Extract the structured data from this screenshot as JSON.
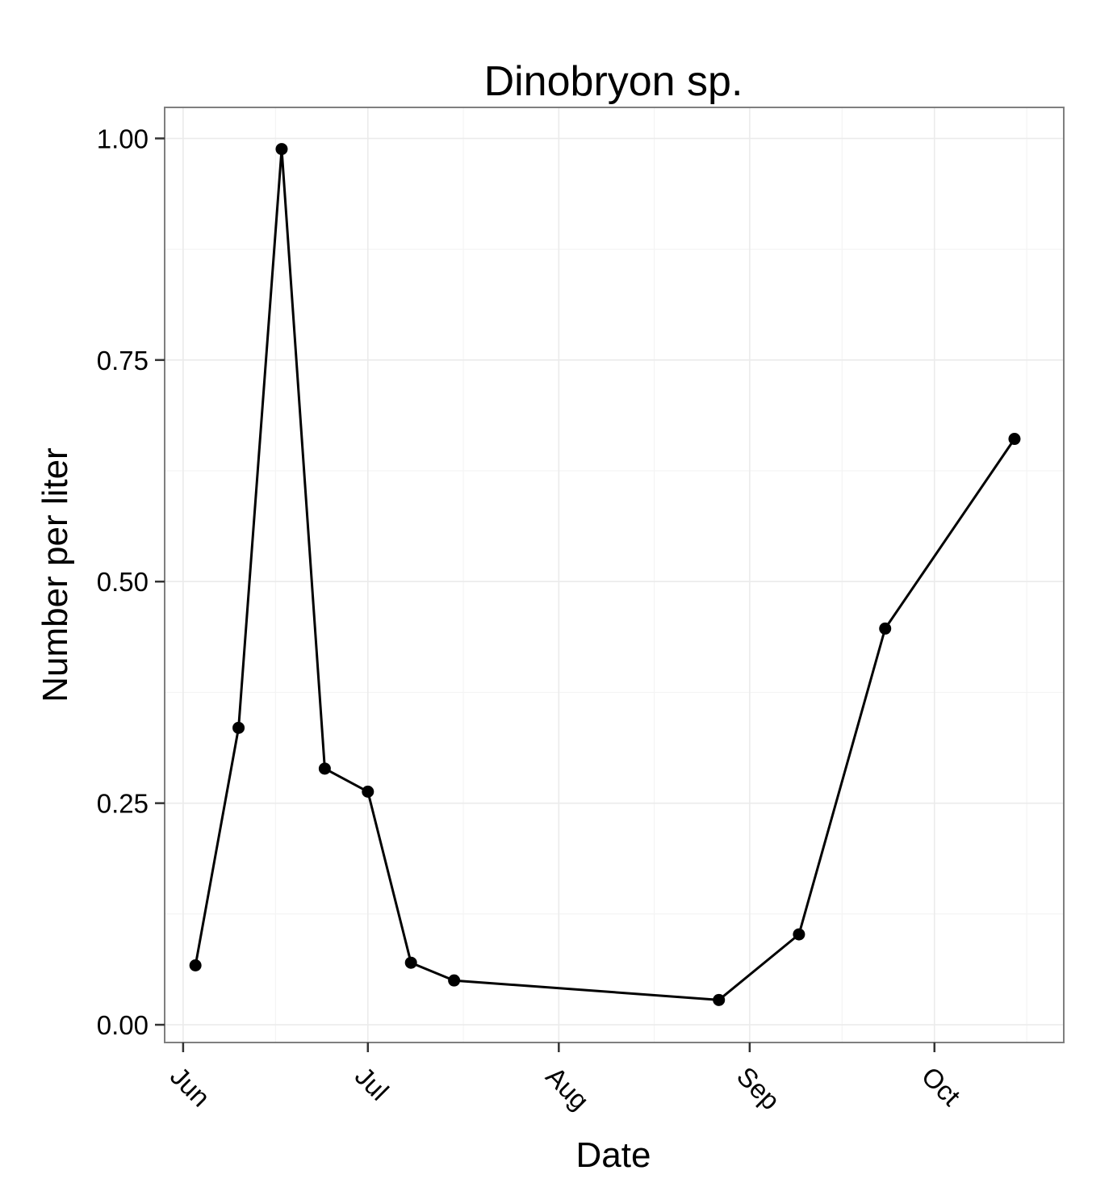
{
  "chart_data": {
    "type": "line",
    "title": "Dinobryon sp.",
    "xlabel": "Date",
    "ylabel": "Number per liter",
    "x_scale": "date",
    "xlim": [
      "2013-05-29",
      "2013-10-22"
    ],
    "ylim": [
      -0.02,
      1.035
    ],
    "x_ticks": [
      {
        "date": "2013-06-01",
        "label": "Jun"
      },
      {
        "date": "2013-07-01",
        "label": "Jul"
      },
      {
        "date": "2013-08-01",
        "label": "Aug"
      },
      {
        "date": "2013-09-01",
        "label": "Sep"
      },
      {
        "date": "2013-10-01",
        "label": "Oct"
      }
    ],
    "y_ticks": [
      {
        "value": 0,
        "label": "0.00"
      },
      {
        "value": 0.25,
        "label": "0.25"
      },
      {
        "value": 0.5,
        "label": "0.50"
      },
      {
        "value": 0.75,
        "label": "0.75"
      },
      {
        "value": 1,
        "label": "1.00"
      }
    ],
    "grid": true,
    "legend": "none",
    "color": "#000000",
    "points": [
      {
        "x": "2013-06-03",
        "y": 0.067
      },
      {
        "x": "2013-06-10",
        "y": 0.335
      },
      {
        "x": "2013-06-17",
        "y": 0.988
      },
      {
        "x": "2013-06-24",
        "y": 0.289
      },
      {
        "x": "2013-07-01",
        "y": 0.263
      },
      {
        "x": "2013-07-08",
        "y": 0.07
      },
      {
        "x": "2013-07-15",
        "y": 0.05
      },
      {
        "x": "2013-08-27",
        "y": 0.028
      },
      {
        "x": "2013-09-09",
        "y": 0.102
      },
      {
        "x": "2013-09-23",
        "y": 0.447
      },
      {
        "x": "2013-10-14",
        "y": 0.661
      }
    ]
  }
}
